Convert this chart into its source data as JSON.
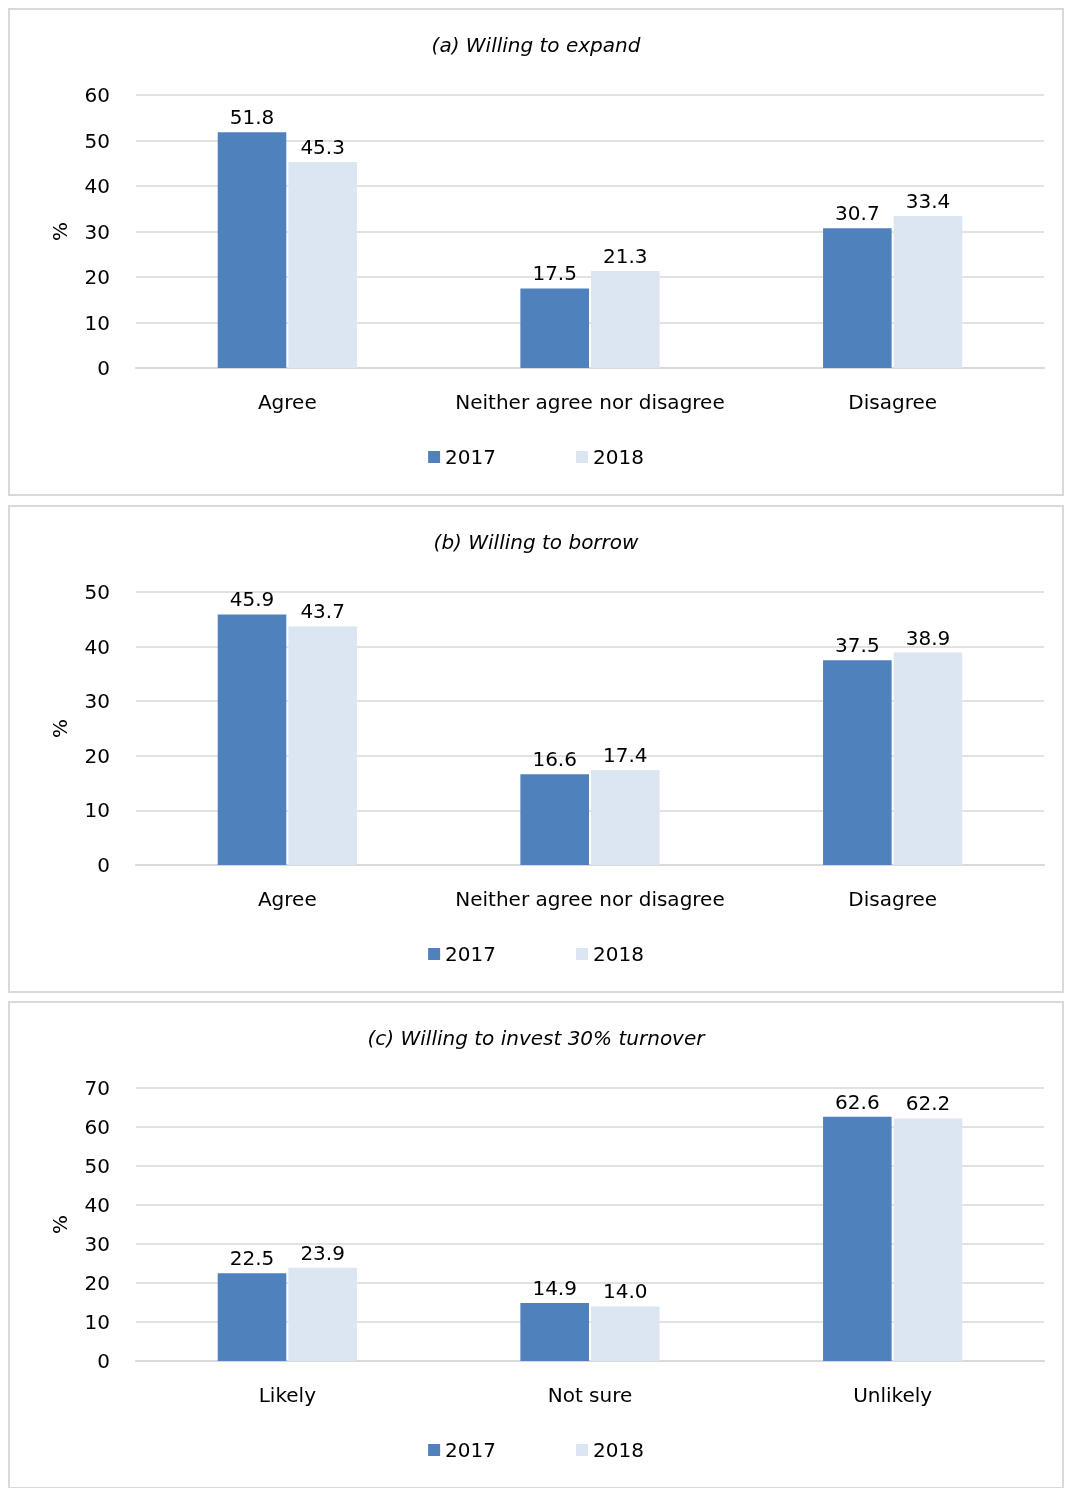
{
  "chart_data": [
    {
      "type": "bar",
      "title": "(a) Willing to expand",
      "ylabel": "%",
      "categories": [
        "Agree",
        "Neither agree nor disagree",
        "Disagree"
      ],
      "series": [
        {
          "name": "2017",
          "color": "#4f81bd",
          "values": [
            51.8,
            17.5,
            30.7
          ]
        },
        {
          "name": "2018",
          "color": "#dce6f2",
          "values": [
            45.3,
            21.3,
            33.4
          ]
        }
      ],
      "ylim": [
        0,
        60
      ],
      "yticks": [
        0,
        10,
        20,
        30,
        40,
        50,
        60
      ],
      "grid": "y",
      "legend": "bottom",
      "data_labels": true
    },
    {
      "type": "bar",
      "title": "(b) Willing to borrow",
      "ylabel": "%",
      "categories": [
        "Agree",
        "Neither agree nor disagree",
        "Disagree"
      ],
      "series": [
        {
          "name": "2017",
          "color": "#4f81bd",
          "values": [
            45.9,
            16.6,
            37.5
          ]
        },
        {
          "name": "2018",
          "color": "#dce6f2",
          "values": [
            43.7,
            17.4,
            38.9
          ]
        }
      ],
      "ylim": [
        0,
        50
      ],
      "yticks": [
        0,
        10,
        20,
        30,
        40,
        50
      ],
      "grid": "y",
      "legend": "bottom",
      "data_labels": true
    },
    {
      "type": "bar",
      "title": "(c) Willing to invest 30% turnover",
      "ylabel": "%",
      "categories": [
        "Likely",
        "Not sure",
        "Unlikely"
      ],
      "series": [
        {
          "name": "2017",
          "color": "#4f81bd",
          "values": [
            22.5,
            14.9,
            62.6
          ],
          "value_labels": [
            "22.5",
            "14.9",
            "62.6"
          ]
        },
        {
          "name": "2018",
          "color": "#dce6f2",
          "values": [
            23.9,
            14.0,
            62.2
          ],
          "value_labels": [
            "23.9",
            "14.0",
            "62.2"
          ]
        }
      ],
      "ylim": [
        0,
        70
      ],
      "yticks": [
        0,
        10,
        20,
        30,
        40,
        50,
        60,
        70
      ],
      "grid": "y",
      "legend": "bottom"
    }
  ]
}
